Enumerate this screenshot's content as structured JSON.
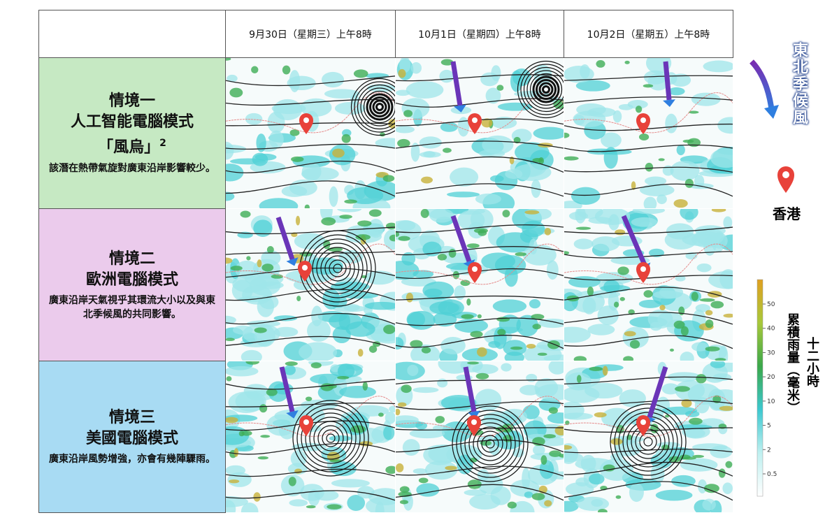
{
  "header": {
    "columns": [
      "9月30日（星期三）上午8時",
      "10月1日（星期四）上午8時",
      "10月2日（星期五）上午8時"
    ]
  },
  "rows": [
    {
      "title": [
        "情境一",
        "人工智能電腦模式",
        "「風烏」"
      ],
      "footnote": "2",
      "description": "該潛在熱帶氣旋對廣東沿岸影響較少。"
    },
    {
      "title": [
        "情境二",
        "歐洲電腦模式"
      ],
      "description": "廣東沿岸天氣視乎其環流大小以及與東北季候風的共同影響。"
    },
    {
      "title": [
        "情境三",
        "美國電腦模式"
      ],
      "description": "廣東沿岸風勢增強，亦會有幾陣驟雨。"
    }
  ],
  "legend": {
    "monsoon": "東北季候風",
    "location": "香港"
  },
  "colorbar": {
    "title": [
      "十二小時",
      "累積雨量（毫米）"
    ],
    "ticks": [
      0.5,
      2,
      5,
      10,
      20,
      30,
      40,
      50
    ]
  }
}
